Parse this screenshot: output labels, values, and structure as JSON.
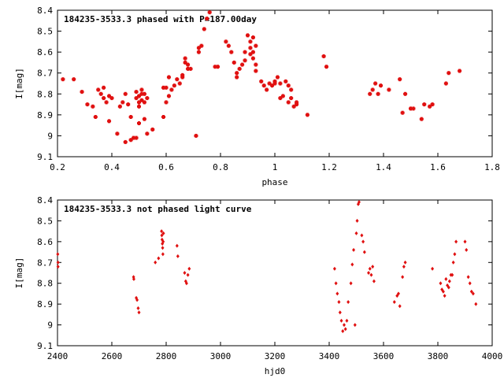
{
  "chart_data": [
    {
      "type": "scatter",
      "title": "184235-3533.3 phased with P=187.00day",
      "xlabel": "phase",
      "ylabel": "I[mag]",
      "xlim": [
        0.2,
        1.8
      ],
      "ylim": [
        8.4,
        9.1
      ],
      "y_inverted": true,
      "xticks": [
        0.2,
        0.4,
        0.6,
        0.8,
        1,
        1.2,
        1.4,
        1.6,
        1.8
      ],
      "yticks": [
        8.4,
        8.5,
        8.6,
        8.7,
        8.8,
        8.9,
        9,
        9.1
      ],
      "grid": false,
      "marker": "cross",
      "color": "#e01010",
      "points": [
        [
          0.22,
          8.73
        ],
        [
          0.26,
          8.73
        ],
        [
          0.29,
          8.79
        ],
        [
          0.31,
          8.85
        ],
        [
          0.33,
          8.86
        ],
        [
          0.34,
          8.91
        ],
        [
          0.35,
          8.78
        ],
        [
          0.36,
          8.8
        ],
        [
          0.37,
          8.77
        ],
        [
          0.37,
          8.82
        ],
        [
          0.38,
          8.84
        ],
        [
          0.39,
          8.93
        ],
        [
          0.39,
          8.81
        ],
        [
          0.4,
          8.82
        ],
        [
          0.42,
          8.99
        ],
        [
          0.43,
          8.86
        ],
        [
          0.44,
          8.84
        ],
        [
          0.45,
          8.8
        ],
        [
          0.45,
          9.03
        ],
        [
          0.46,
          8.85
        ],
        [
          0.47,
          8.91
        ],
        [
          0.47,
          9.02
        ],
        [
          0.48,
          9.01
        ],
        [
          0.49,
          9.01
        ],
        [
          0.49,
          8.79
        ],
        [
          0.49,
          8.82
        ],
        [
          0.5,
          8.84
        ],
        [
          0.5,
          8.81
        ],
        [
          0.5,
          8.86
        ],
        [
          0.5,
          8.94
        ],
        [
          0.51,
          8.78
        ],
        [
          0.51,
          8.8
        ],
        [
          0.51,
          8.83
        ],
        [
          0.52,
          8.8
        ],
        [
          0.52,
          8.84
        ],
        [
          0.52,
          8.92
        ],
        [
          0.53,
          8.82
        ],
        [
          0.53,
          8.99
        ],
        [
          0.55,
          8.97
        ],
        [
          0.59,
          8.91
        ],
        [
          0.59,
          8.77
        ],
        [
          0.6,
          8.77
        ],
        [
          0.6,
          8.84
        ],
        [
          0.61,
          8.81
        ],
        [
          0.61,
          8.72
        ],
        [
          0.62,
          8.78
        ],
        [
          0.63,
          8.76
        ],
        [
          0.64,
          8.73
        ],
        [
          0.65,
          8.75
        ],
        [
          0.66,
          8.72
        ],
        [
          0.66,
          8.71
        ],
        [
          0.67,
          8.63
        ],
        [
          0.67,
          8.65
        ],
        [
          0.68,
          8.66
        ],
        [
          0.68,
          8.68
        ],
        [
          0.69,
          8.68
        ],
        [
          0.71,
          9.0
        ],
        [
          0.72,
          8.58
        ],
        [
          0.72,
          8.6
        ],
        [
          0.73,
          8.57
        ],
        [
          0.74,
          8.49
        ],
        [
          0.75,
          8.44
        ],
        [
          0.76,
          8.41
        ],
        [
          0.78,
          8.67
        ],
        [
          0.79,
          8.67
        ],
        [
          0.82,
          8.55
        ],
        [
          0.83,
          8.57
        ],
        [
          0.84,
          8.6
        ],
        [
          0.85,
          8.65
        ],
        [
          0.86,
          8.7
        ],
        [
          0.86,
          8.72
        ],
        [
          0.87,
          8.68
        ],
        [
          0.88,
          8.66
        ],
        [
          0.89,
          8.6
        ],
        [
          0.89,
          8.64
        ],
        [
          0.9,
          8.52
        ],
        [
          0.91,
          8.55
        ],
        [
          0.91,
          8.58
        ],
        [
          0.91,
          8.61
        ],
        [
          0.92,
          8.53
        ],
        [
          0.92,
          8.6
        ],
        [
          0.92,
          8.63
        ],
        [
          0.93,
          8.57
        ],
        [
          0.93,
          8.66
        ],
        [
          0.93,
          8.69
        ],
        [
          0.95,
          8.74
        ],
        [
          0.96,
          8.76
        ],
        [
          0.97,
          8.78
        ],
        [
          0.98,
          8.75
        ],
        [
          0.99,
          8.76
        ],
        [
          1.0,
          8.75
        ],
        [
          1.0,
          8.74
        ],
        [
          1.01,
          8.72
        ],
        [
          1.02,
          8.75
        ],
        [
          1.02,
          8.82
        ],
        [
          1.03,
          8.81
        ],
        [
          1.04,
          8.74
        ],
        [
          1.05,
          8.76
        ],
        [
          1.05,
          8.84
        ],
        [
          1.06,
          8.78
        ],
        [
          1.06,
          8.82
        ],
        [
          1.07,
          8.86
        ],
        [
          1.08,
          8.85
        ],
        [
          1.08,
          8.84
        ],
        [
          1.12,
          8.9
        ],
        [
          1.18,
          8.62
        ],
        [
          1.19,
          8.67
        ],
        [
          1.35,
          8.8
        ],
        [
          1.36,
          8.78
        ],
        [
          1.37,
          8.75
        ],
        [
          1.38,
          8.8
        ],
        [
          1.39,
          8.76
        ],
        [
          1.42,
          8.78
        ],
        [
          1.46,
          8.73
        ],
        [
          1.47,
          8.89
        ],
        [
          1.48,
          8.8
        ],
        [
          1.5,
          8.87
        ],
        [
          1.51,
          8.87
        ],
        [
          1.54,
          8.92
        ],
        [
          1.55,
          8.85
        ],
        [
          1.57,
          8.86
        ],
        [
          1.58,
          8.85
        ],
        [
          1.63,
          8.75
        ],
        [
          1.64,
          8.7
        ],
        [
          1.68,
          8.69
        ]
      ]
    },
    {
      "type": "scatter",
      "title": "184235-3533.3 not phased light curve",
      "xlabel": "hjd0",
      "ylabel": "I[mag]",
      "xlim": [
        2400,
        4000
      ],
      "ylim": [
        8.4,
        9.1
      ],
      "y_inverted": true,
      "xticks": [
        2400,
        2600,
        2800,
        3000,
        3200,
        3400,
        3600,
        3800,
        4000
      ],
      "yticks": [
        8.4,
        8.5,
        8.6,
        8.7,
        8.8,
        8.9,
        9,
        9.1
      ],
      "grid": false,
      "marker": "diamond",
      "color": "#e01010",
      "points": [
        [
          2401,
          8.66
        ],
        [
          2402,
          8.7
        ],
        [
          2402,
          8.72
        ],
        [
          2680,
          8.77
        ],
        [
          2681,
          8.78
        ],
        [
          2690,
          8.87
        ],
        [
          2693,
          8.88
        ],
        [
          2697,
          8.92
        ],
        [
          2700,
          8.94
        ],
        [
          2760,
          8.7
        ],
        [
          2772,
          8.68
        ],
        [
          2783,
          8.55
        ],
        [
          2784,
          8.57
        ],
        [
          2785,
          8.59
        ],
        [
          2786,
          8.61
        ],
        [
          2787,
          8.63
        ],
        [
          2788,
          8.66
        ],
        [
          2789,
          8.6
        ],
        [
          2790,
          8.56
        ],
        [
          2840,
          8.62
        ],
        [
          2843,
          8.67
        ],
        [
          2868,
          8.75
        ],
        [
          2872,
          8.79
        ],
        [
          2875,
          8.8
        ],
        [
          2880,
          8.76
        ],
        [
          2885,
          8.73
        ],
        [
          3420,
          8.73
        ],
        [
          3425,
          8.8
        ],
        [
          3430,
          8.85
        ],
        [
          3436,
          8.89
        ],
        [
          3440,
          8.94
        ],
        [
          3445,
          8.98
        ],
        [
          3450,
          9.03
        ],
        [
          3455,
          9.0
        ],
        [
          3460,
          9.02
        ],
        [
          3465,
          8.98
        ],
        [
          3470,
          8.89
        ],
        [
          3480,
          8.8
        ],
        [
          3485,
          8.71
        ],
        [
          3490,
          8.64
        ],
        [
          3495,
          9.0
        ],
        [
          3500,
          8.56
        ],
        [
          3503,
          8.5
        ],
        [
          3507,
          8.42
        ],
        [
          3510,
          8.41
        ],
        [
          3520,
          8.57
        ],
        [
          3525,
          8.6
        ],
        [
          3530,
          8.65
        ],
        [
          3545,
          8.75
        ],
        [
          3550,
          8.73
        ],
        [
          3555,
          8.76
        ],
        [
          3560,
          8.72
        ],
        [
          3565,
          8.79
        ],
        [
          3640,
          8.89
        ],
        [
          3650,
          8.86
        ],
        [
          3655,
          8.85
        ],
        [
          3660,
          8.91
        ],
        [
          3670,
          8.77
        ],
        [
          3675,
          8.72
        ],
        [
          3680,
          8.7
        ],
        [
          3780,
          8.73
        ],
        [
          3810,
          8.8
        ],
        [
          3815,
          8.83
        ],
        [
          3820,
          8.84
        ],
        [
          3825,
          8.86
        ],
        [
          3830,
          8.78
        ],
        [
          3835,
          8.81
        ],
        [
          3840,
          8.82
        ],
        [
          3843,
          8.79
        ],
        [
          3848,
          8.76
        ],
        [
          3853,
          8.76
        ],
        [
          3857,
          8.7
        ],
        [
          3862,
          8.66
        ],
        [
          3867,
          8.6
        ],
        [
          3900,
          8.6
        ],
        [
          3905,
          8.64
        ],
        [
          3912,
          8.77
        ],
        [
          3918,
          8.8
        ],
        [
          3924,
          8.84
        ],
        [
          3930,
          8.85
        ],
        [
          3940,
          8.9
        ]
      ]
    }
  ]
}
